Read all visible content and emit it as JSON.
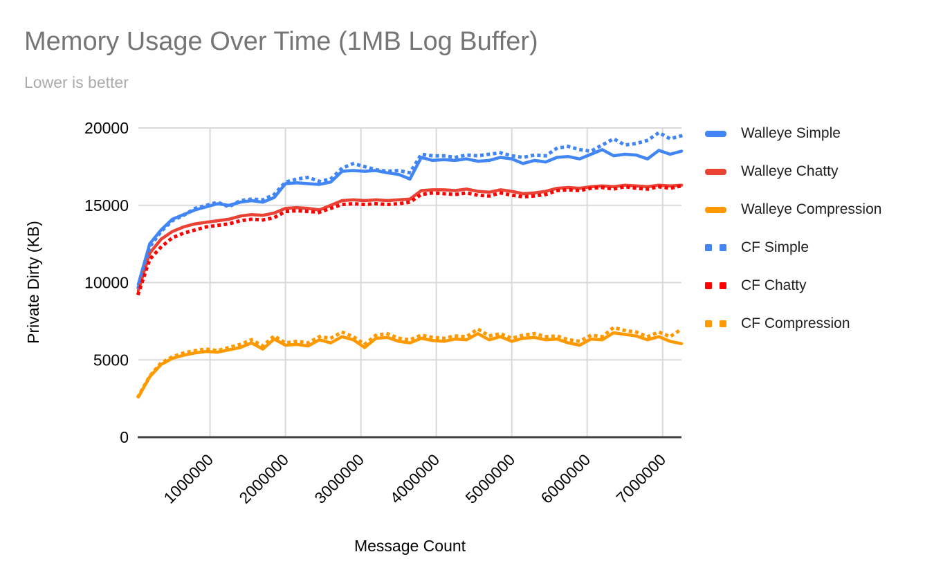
{
  "title": "Memory Usage Over Time (1MB Log Buffer)",
  "subtitle": "Lower is better",
  "chart_data": {
    "type": "line",
    "title": "Memory Usage Over Time (1MB Log Buffer)",
    "subtitle": "Lower is better",
    "xlabel": "Message Count",
    "ylabel": "Private Dirty (KB)",
    "xlim": [
      50000,
      7250000
    ],
    "ylim": [
      0,
      20000
    ],
    "x_ticks": [
      1000000,
      2000000,
      3000000,
      4000000,
      5000000,
      6000000,
      7000000
    ],
    "y_ticks": [
      0,
      5000,
      10000,
      15000,
      20000
    ],
    "grid": true,
    "legend_position": "right",
    "x": [
      50000,
      200000,
      350000,
      500000,
      650000,
      800000,
      950000,
      1100000,
      1250000,
      1400000,
      1550000,
      1700000,
      1850000,
      2000000,
      2150000,
      2300000,
      2450000,
      2600000,
      2750000,
      2900000,
      3050000,
      3200000,
      3350000,
      3500000,
      3650000,
      3800000,
      3950000,
      4100000,
      4250000,
      4400000,
      4550000,
      4700000,
      4850000,
      5000000,
      5150000,
      5300000,
      5450000,
      5600000,
      5750000,
      5900000,
      6050000,
      6200000,
      6350000,
      6500000,
      6650000,
      6800000,
      6950000,
      7100000,
      7250000
    ],
    "series": [
      {
        "name": "Walleye Simple",
        "color": "#4285F4",
        "style": "solid",
        "values": [
          9900,
          12500,
          13400,
          14100,
          14400,
          14700,
          14900,
          15100,
          15000,
          15200,
          15300,
          15200,
          15500,
          16400,
          16450,
          16400,
          16350,
          16500,
          17200,
          17250,
          17200,
          17250,
          17100,
          17000,
          16700,
          18100,
          17900,
          17950,
          17900,
          18000,
          17850,
          17900,
          18100,
          18000,
          17700,
          17900,
          17800,
          18100,
          18150,
          18000,
          18300,
          18600,
          18200,
          18300,
          18250,
          18000,
          18550,
          18300,
          18500
        ]
      },
      {
        "name": "Walleye Chatty",
        "color": "#EA4335",
        "style": "solid",
        "values": [
          9500,
          11900,
          12800,
          13300,
          13600,
          13800,
          13900,
          14000,
          14100,
          14300,
          14400,
          14350,
          14500,
          14800,
          14850,
          14800,
          14700,
          15000,
          15300,
          15350,
          15300,
          15350,
          15300,
          15350,
          15400,
          15950,
          16000,
          16000,
          15950,
          16050,
          15900,
          15850,
          16000,
          15900,
          15750,
          15800,
          15900,
          16100,
          16150,
          16100,
          16200,
          16250,
          16200,
          16300,
          16250,
          16200,
          16300,
          16250,
          16300
        ]
      },
      {
        "name": "Walleye Compression",
        "color": "#FF9900",
        "style": "solid",
        "values": [
          2600,
          3900,
          4700,
          5100,
          5300,
          5450,
          5550,
          5500,
          5650,
          5800,
          6100,
          5700,
          6350,
          5950,
          6000,
          5900,
          6300,
          6100,
          6500,
          6300,
          5800,
          6400,
          6450,
          6200,
          6100,
          6400,
          6250,
          6200,
          6350,
          6300,
          6700,
          6300,
          6500,
          6200,
          6400,
          6450,
          6300,
          6350,
          6100,
          5950,
          6350,
          6300,
          6750,
          6650,
          6550,
          6300,
          6500,
          6200,
          6050
        ]
      },
      {
        "name": "CF Simple",
        "color": "#4285F4",
        "style": "dotted",
        "values": [
          9700,
          12300,
          13300,
          14000,
          14350,
          14800,
          15000,
          15200,
          14900,
          15300,
          15400,
          15350,
          15700,
          16500,
          16700,
          16800,
          16550,
          16700,
          17400,
          17700,
          17500,
          17300,
          17200,
          17250,
          17100,
          18300,
          18200,
          18200,
          18100,
          18250,
          18200,
          18300,
          18400,
          18200,
          18100,
          18250,
          18200,
          18700,
          18800,
          18600,
          18500,
          18900,
          19300,
          18900,
          19000,
          19200,
          19700,
          19300,
          19500
        ]
      },
      {
        "name": "CF Chatty",
        "color": "#FF0000",
        "style": "dotted",
        "values": [
          9300,
          11500,
          12300,
          12900,
          13200,
          13400,
          13600,
          13700,
          13800,
          14000,
          14100,
          14050,
          14200,
          14600,
          14650,
          14600,
          14550,
          14800,
          15050,
          15100,
          15050,
          15100,
          15050,
          15100,
          15200,
          15700,
          15800,
          15750,
          15700,
          15800,
          15650,
          15600,
          15800,
          15650,
          15550,
          15600,
          15700,
          15950,
          16000,
          15950,
          16100,
          16150,
          16050,
          16200,
          16100,
          16050,
          16200,
          16100,
          16250
        ]
      },
      {
        "name": "CF Compression",
        "color": "#FF9900",
        "style": "dotted",
        "values": [
          2650,
          3950,
          4800,
          5200,
          5450,
          5600,
          5700,
          5600,
          5800,
          6000,
          6300,
          5900,
          6550,
          6100,
          6200,
          6100,
          6500,
          6400,
          6800,
          6500,
          6000,
          6600,
          6700,
          6400,
          6300,
          6600,
          6450,
          6400,
          6550,
          6500,
          7000,
          6550,
          6700,
          6400,
          6600,
          6700,
          6500,
          6550,
          6300,
          6200,
          6600,
          6500,
          7100,
          6900,
          6800,
          6500,
          6800,
          6500,
          7000
        ]
      }
    ],
    "colors": {
      "blue": "#4285F4",
      "red": "#EA4335",
      "dotted_red": "#FF0000",
      "orange": "#FF9900",
      "gridline": "#d9d9d9",
      "axis": "#424242",
      "title": "#757575",
      "subtitle": "#ababab"
    }
  }
}
